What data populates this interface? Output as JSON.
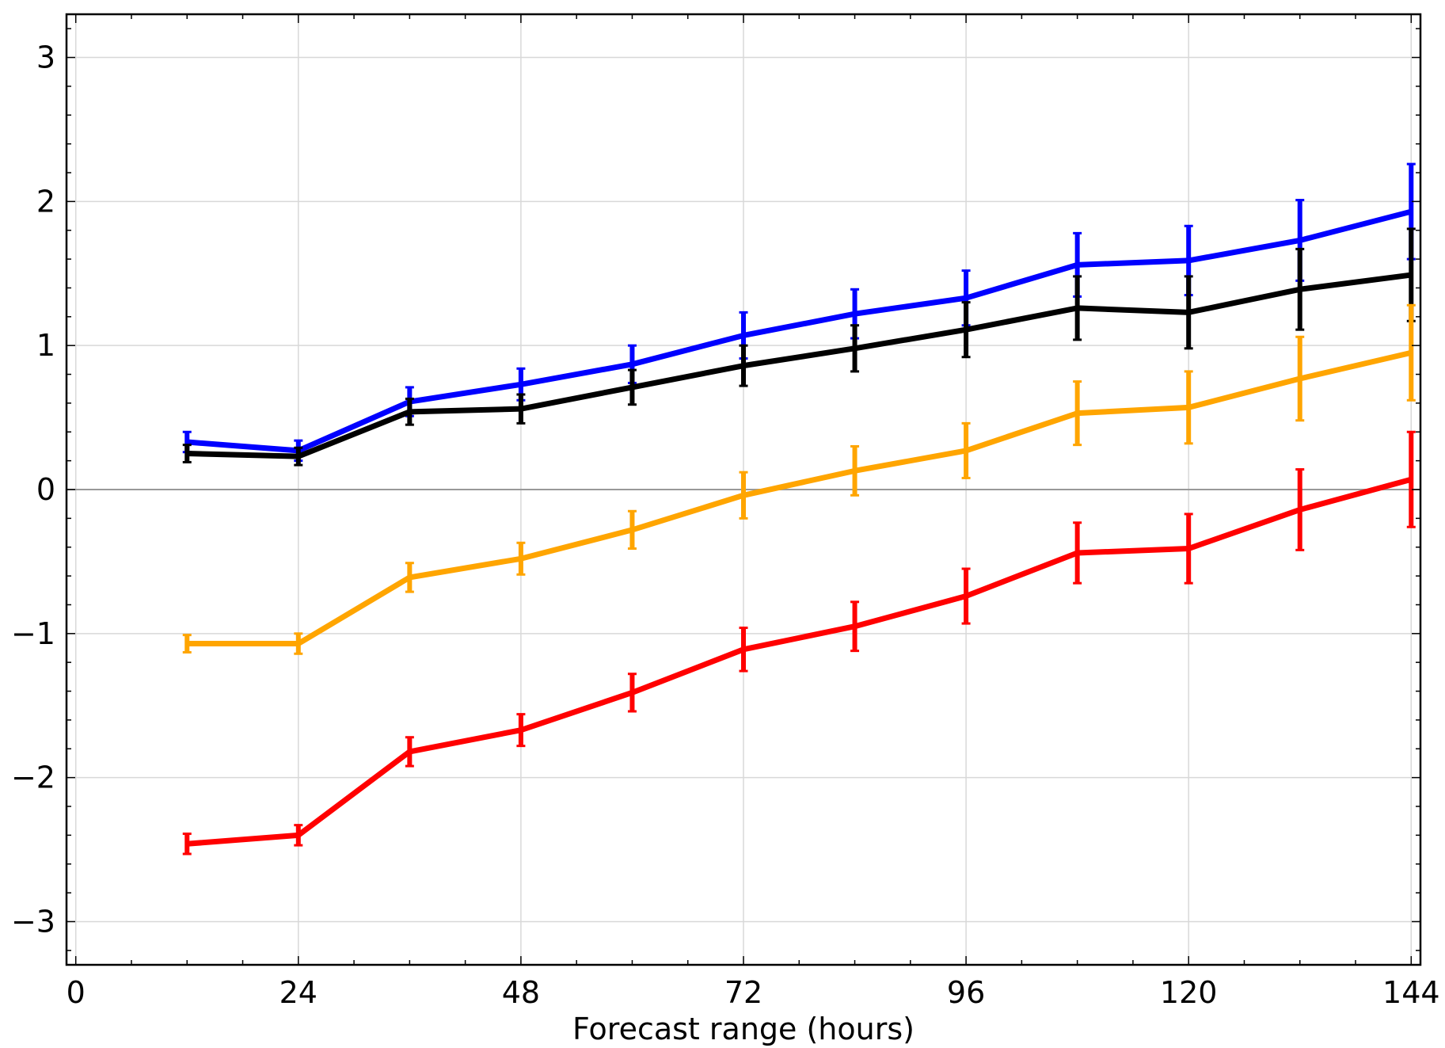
{
  "chart_data": {
    "type": "line",
    "title": "",
    "xlabel": "Forecast range (hours)",
    "ylabel": "",
    "xlim": [
      -1,
      145
    ],
    "ylim": [
      -3.3,
      3.3
    ],
    "grid": true,
    "legend": "none",
    "x_ticks": [
      0,
      24,
      48,
      72,
      96,
      120,
      144
    ],
    "x_tick_labels": [
      "0",
      "24",
      "48",
      "72",
      "96",
      "120",
      "144"
    ],
    "y_ticks": [
      3,
      2,
      1,
      0,
      -1,
      -2,
      -3
    ],
    "y_tick_labels": [
      "3",
      "2",
      "1",
      "0",
      "−1",
      "−2",
      "−3"
    ],
    "x": [
      12,
      24,
      36,
      48,
      60,
      72,
      84,
      96,
      108,
      120,
      132,
      144
    ],
    "series": [
      {
        "color": "#0000ff",
        "values": [
          0.33,
          0.27,
          0.61,
          0.73,
          0.87,
          1.07,
          1.22,
          1.33,
          1.56,
          1.59,
          1.73,
          1.93
        ],
        "error": [
          0.07,
          0.07,
          0.1,
          0.11,
          0.13,
          0.16,
          0.17,
          0.19,
          0.22,
          0.24,
          0.28,
          0.33
        ]
      },
      {
        "color": "#000000",
        "values": [
          0.25,
          0.23,
          0.54,
          0.56,
          0.71,
          0.86,
          0.98,
          1.11,
          1.26,
          1.23,
          1.39,
          1.49
        ],
        "error": [
          0.06,
          0.06,
          0.09,
          0.1,
          0.12,
          0.14,
          0.16,
          0.19,
          0.22,
          0.25,
          0.28,
          0.32
        ]
      },
      {
        "color": "#ffa500",
        "values": [
          -1.07,
          -1.07,
          -0.61,
          -0.48,
          -0.28,
          -0.04,
          0.13,
          0.27,
          0.53,
          0.57,
          0.77,
          0.95
        ],
        "error": [
          0.06,
          0.07,
          0.1,
          0.11,
          0.13,
          0.16,
          0.17,
          0.19,
          0.22,
          0.25,
          0.29,
          0.33
        ]
      },
      {
        "color": "#ff0000",
        "values": [
          -2.46,
          -2.4,
          -1.82,
          -1.67,
          -1.41,
          -1.11,
          -0.95,
          -0.74,
          -0.44,
          -0.41,
          -0.14,
          0.07
        ],
        "error": [
          0.07,
          0.07,
          0.1,
          0.11,
          0.13,
          0.15,
          0.17,
          0.19,
          0.21,
          0.24,
          0.28,
          0.33
        ]
      }
    ]
  }
}
